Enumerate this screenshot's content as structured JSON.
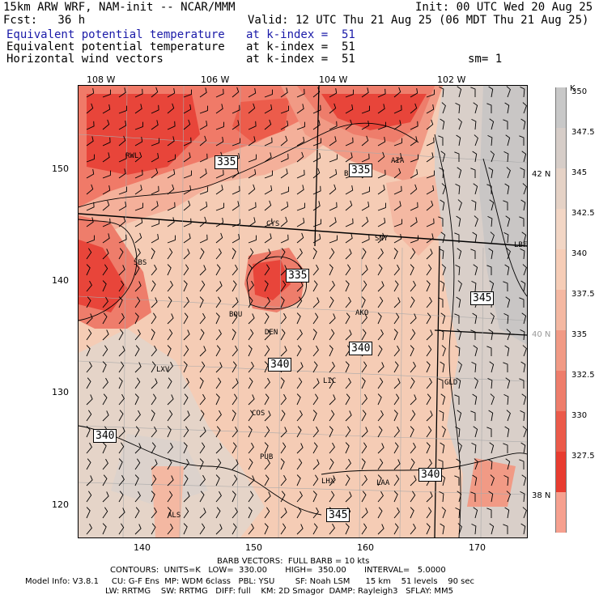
{
  "header": {
    "line1_left": "15km ARW WRF, NAM-init -- NCAR/MMM",
    "line1_right": "Init: 00 UTC Wed 20 Aug 25",
    "line2_left": "Fcst:   36 h",
    "line2_right": "Valid: 12 UTC Thu 21 Aug 25 (06 MDT Thu 21 Aug 25)",
    "fields": [
      {
        "name": "Equivalent potential temperature",
        "level": "at k-index =  51"
      },
      {
        "name": "Equivalent potential temperature",
        "level": "at k-index =  51"
      },
      {
        "name": "Horizontal wind vectors",
        "level": "at k-index =  51"
      }
    ],
    "smoothing": "sm= 1"
  },
  "axes": {
    "top_ticks": [
      "108 W",
      "106 W",
      "104 W",
      "102 W"
    ],
    "left_ticks": [
      "150",
      "140",
      "130",
      "120"
    ],
    "bottom_ticks": [
      "140",
      "150",
      "160",
      "170"
    ],
    "right_lat": [
      "42 N",
      "40 N",
      "38 N"
    ]
  },
  "colorbar": {
    "unit": "K",
    "labels": [
      "350",
      "347.5",
      "345",
      "342.5",
      "340",
      "337.5",
      "335",
      "332.5",
      "330",
      "327.5"
    ],
    "colors": [
      "#c8c8c8",
      "#d6cdc8",
      "#e5d2c6",
      "#f2d6c5",
      "#f6cdb7",
      "#f4b8a2",
      "#f19a85",
      "#ee7d6b",
      "#eb5a4a",
      "#e83c30",
      "#f6a08f"
    ]
  },
  "map": {
    "stations": [
      "RWL",
      "BIL",
      "AIA",
      "CYS",
      "SNY",
      "LBF",
      "SBS",
      "BOU",
      "DEN",
      "AKO",
      "LXV",
      "LIC",
      "GLD",
      "COS",
      "PUB",
      "LAA",
      "LHX",
      "ALS"
    ],
    "contour_labels": [
      "335",
      "335",
      "335",
      "345",
      "340",
      "340",
      "340",
      "340",
      "345"
    ],
    "colors": {
      "red_dark": "#e8453a",
      "red_mid": "#f07a68",
      "salmon": "#f4b09a",
      "peach": "#f5ccb5",
      "beige": "#ead5c6",
      "grey": "#c9c6c5"
    }
  },
  "footer": {
    "barb": "BARB VECTORS:  FULL BARB = 10 kts",
    "contours": "CONTOURS:  UNITS=K   LOW=  330.00       HIGH=  350.00       INTERVAL=   5.0000",
    "model_line1": "Model Info: V3.8.1     CU: G-F Ens  MP: WDM 6class   PBL: YSU        SF: Noah LSM      15 km    51 levels    90 sec",
    "model_line2": "LW: RRTMG    SW: RRTMG   DIFF: full    KM: 2D Smagor  DAMP: Rayleigh3   SFLAY: MM5"
  }
}
